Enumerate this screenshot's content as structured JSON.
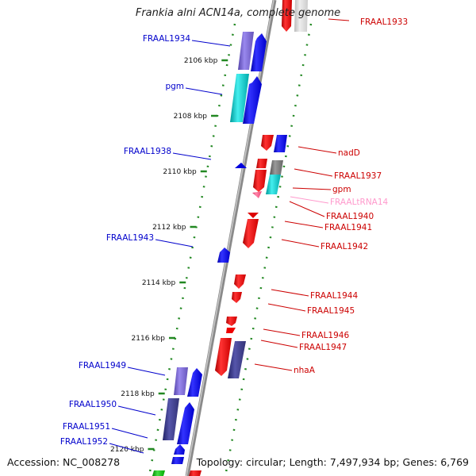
{
  "title": "Frankia alni ACN14a, complete genome",
  "footer": {
    "accession": "Accession: NC_008278",
    "summary": "Topology: circular; Length: 7,497,934 bp; Genes: 6,769"
  },
  "colors": {
    "strand_plus": "#ff0000",
    "strand_minus": "#0000ff",
    "label_plus": "#cc0000",
    "label_minus": "#0000cc",
    "trna_label": "#ff99cc",
    "tick": "#228822",
    "axis": "#888888"
  },
  "ticks": [
    {
      "label": "2106 kbp",
      "kbp": 2106
    },
    {
      "label": "2108 kbp",
      "kbp": 2108
    },
    {
      "label": "2110 kbp",
      "kbp": 2110
    },
    {
      "label": "2112 kbp",
      "kbp": 2112
    },
    {
      "label": "2114 kbp",
      "kbp": 2114
    },
    {
      "label": "2116 kbp",
      "kbp": 2116
    },
    {
      "label": "2118 kbp",
      "kbp": 2118
    },
    {
      "label": "2120 kbp",
      "kbp": 2120
    }
  ],
  "genes": [
    {
      "name": "FRAAL1933",
      "strand": "+"
    },
    {
      "name": "FRAAL1934",
      "strand": "-"
    },
    {
      "name": "pgm",
      "strand": "-"
    },
    {
      "name": "nadD",
      "strand": "+"
    },
    {
      "name": "FRAAL1937",
      "strand": "+"
    },
    {
      "name": "FRAAL1938",
      "strand": "-"
    },
    {
      "name": "gpm",
      "strand": "+"
    },
    {
      "name": "FRAALtRNA14",
      "strand": "+",
      "type": "tRNA"
    },
    {
      "name": "FRAAL1940",
      "strand": "+"
    },
    {
      "name": "FRAAL1941",
      "strand": "+"
    },
    {
      "name": "FRAAL1942",
      "strand": "+"
    },
    {
      "name": "FRAAL1943",
      "strand": "-"
    },
    {
      "name": "FRAAL1944",
      "strand": "+"
    },
    {
      "name": "FRAAL1945",
      "strand": "+"
    },
    {
      "name": "FRAAL1946",
      "strand": "+"
    },
    {
      "name": "FRAAL1947",
      "strand": "+"
    },
    {
      "name": "nhaA",
      "strand": "+"
    },
    {
      "name": "FRAAL1949",
      "strand": "-"
    },
    {
      "name": "FRAAL1950",
      "strand": "-"
    },
    {
      "name": "FRAAL1951",
      "strand": "-"
    },
    {
      "name": "FRAAL1952",
      "strand": "-"
    }
  ]
}
